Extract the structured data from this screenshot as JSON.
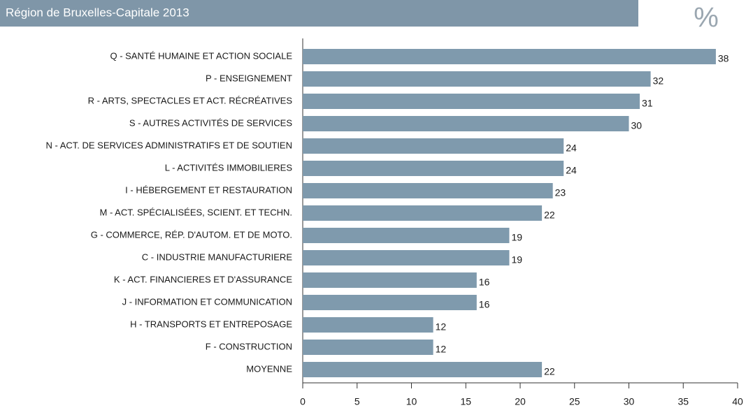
{
  "chart_data": {
    "type": "barh",
    "title": "Région de Bruxelles-Capitale 2013",
    "unit": "%",
    "categories": [
      "Q - SANTÉ HUMAINE ET ACTION SOCIALE",
      "P - ENSEIGNEMENT",
      "R - ARTS, SPECTACLES ET ACT. RÉCRÉATIVES",
      "S - AUTRES ACTIVITÉS DE SERVICES",
      "N - ACT. DE SERVICES ADMINISTRATIFS ET DE SOUTIEN",
      "L - ACTIVITÉS IMMOBILIERES",
      "I - HÉBERGEMENT ET RESTAURATION",
      "M - ACT. SPÉCIALISÉES, SCIENT. ET TECHN.",
      "G - COMMERCE, RÉP. D'AUTOM. ET DE MOTO.",
      "C - INDUSTRIE MANUFACTURIERE",
      "K - ACT. FINANCIERES ET D'ASSURANCE",
      "J - INFORMATION ET COMMUNICATION",
      "H - TRANSPORTS ET ENTREPOSAGE",
      "F - CONSTRUCTION",
      "MOYENNE"
    ],
    "values": [
      38,
      32,
      31,
      30,
      24,
      24,
      23,
      22,
      19,
      19,
      16,
      16,
      12,
      12,
      22
    ],
    "color": "#7f9aad",
    "xlim": [
      0,
      40
    ],
    "xticks": [
      0,
      5,
      10,
      15,
      20,
      25,
      30,
      35,
      40
    ]
  }
}
